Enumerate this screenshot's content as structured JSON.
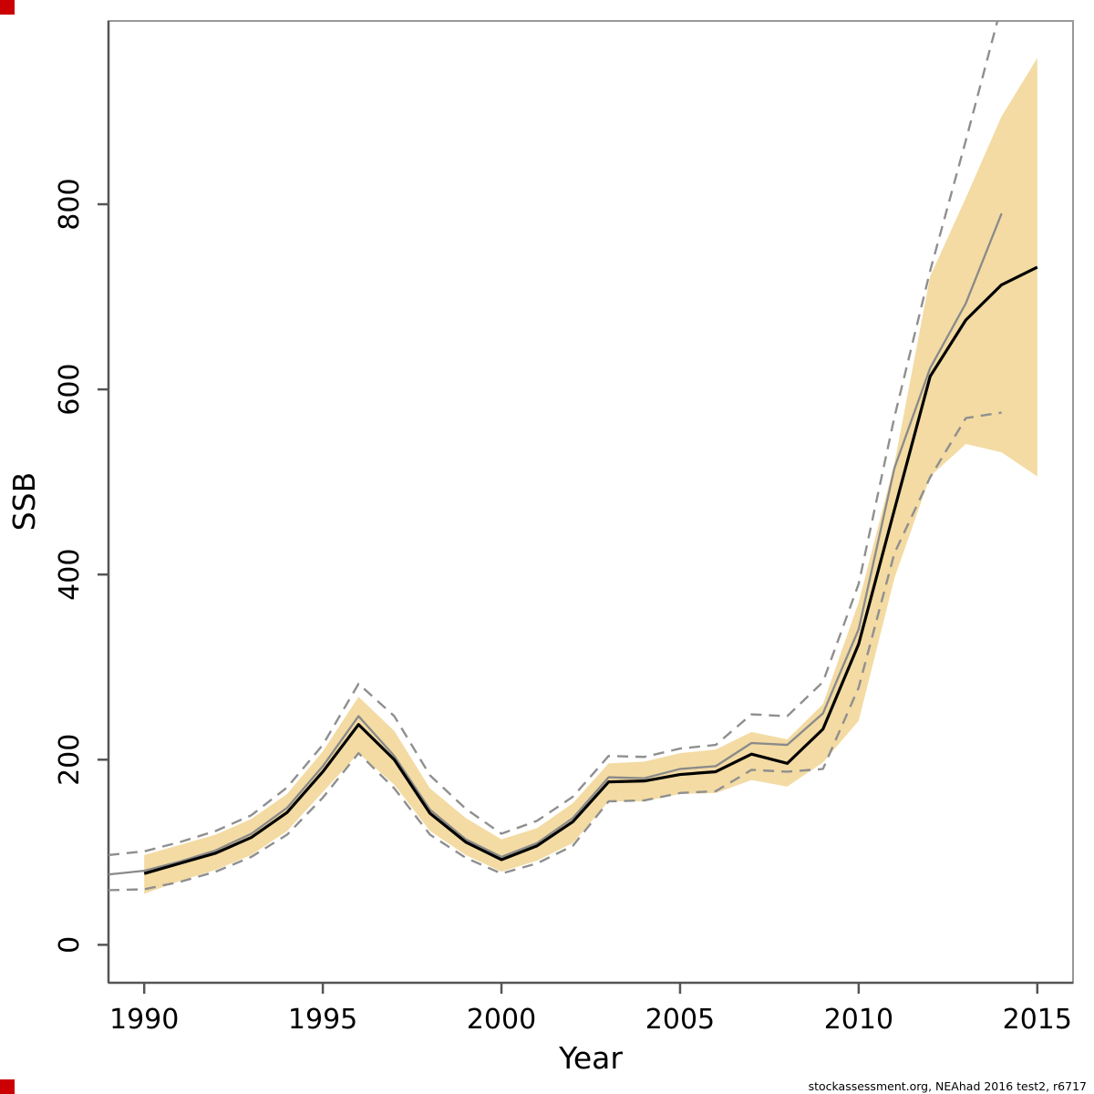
{
  "caption": "stockassessment.org, NEAhad 2016 test2, r6717",
  "axes": {
    "x_label": "Year",
    "y_label": "SSB",
    "x_ticks": [
      1990,
      1995,
      2000,
      2005,
      2010,
      2015
    ],
    "y_ticks": [
      0,
      200,
      400,
      600,
      800
    ]
  },
  "colors": {
    "band": "#f3dba3",
    "median_line": "#000000",
    "comparison_line": "#8a8a8a",
    "dashed_ci": "#8f8f8f",
    "axis_line": "#555555",
    "frame_line": "#999999",
    "corner_marker": "#cc0000",
    "text": "#000000"
  },
  "chart_data": {
    "type": "line",
    "title": "",
    "xlabel": "Year",
    "ylabel": "SSB",
    "xlim": [
      1989,
      2016
    ],
    "ylim": [
      -41,
      998
    ],
    "grid": false,
    "legend": "none",
    "description": "SSB estimate (black) with shaded confidence band (wheat), compared with a second assessment run (gray solid) and its dashed confidence bounds",
    "band": {
      "name": "current-run-confidence-band",
      "years": [
        1990,
        1991,
        1992,
        1993,
        1994,
        1995,
        1996,
        1997,
        1998,
        1999,
        2000,
        2001,
        2002,
        2003,
        2004,
        2005,
        2006,
        2007,
        2008,
        2009,
        2010,
        2011,
        2012,
        2013,
        2014,
        2015
      ],
      "low": [
        55,
        69,
        81,
        97,
        123,
        165,
        207,
        173,
        123,
        97,
        79,
        91,
        110,
        155,
        155,
        163,
        164,
        178,
        171,
        197,
        242,
        396,
        506,
        541,
        532,
        506
      ],
      "high": [
        97,
        108,
        119,
        136,
        163,
        209,
        268,
        231,
        169,
        137,
        114,
        126,
        153,
        196,
        198,
        207,
        211,
        230,
        222,
        260,
        370,
        520,
        722,
        807,
        895,
        958
      ]
    },
    "series": [
      {
        "name": "ssb-median",
        "style": "solid-black",
        "years": [
          1990,
          1991,
          1992,
          1993,
          1994,
          1995,
          1996,
          1997,
          1998,
          1999,
          2000,
          2001,
          2002,
          2003,
          2004,
          2005,
          2006,
          2007,
          2008,
          2009,
          2010,
          2011,
          2012,
          2013,
          2014,
          2015
        ],
        "values": [
          77,
          88,
          99,
          116,
          143,
          187,
          238,
          200,
          142,
          111,
          92,
          107,
          133,
          176,
          177,
          184,
          187,
          206,
          196,
          233,
          325,
          470,
          614,
          675,
          713,
          732
        ]
      },
      {
        "name": "comparison-run",
        "style": "solid-gray",
        "years": [
          1989,
          1990,
          1991,
          1992,
          1993,
          1994,
          1995,
          1996,
          1997,
          1998,
          1999,
          2000,
          2001,
          2002,
          2003,
          2004,
          2005,
          2006,
          2007,
          2008,
          2009,
          2010,
          2011,
          2012,
          2013,
          2014
        ],
        "values": [
          76,
          80,
          90,
          102,
          120,
          148,
          193,
          247,
          204,
          146,
          114,
          95,
          110,
          137,
          181,
          180,
          190,
          193,
          218,
          216,
          250,
          341,
          515,
          623,
          693,
          790
        ]
      },
      {
        "name": "comparison-ci-upper",
        "style": "dashed-gray",
        "years": [
          1989,
          1990,
          1991,
          1992,
          1993,
          1994,
          1995,
          1996,
          1997,
          1998,
          1999,
          2000,
          2001,
          2002,
          2003,
          2004,
          2005,
          2006,
          2007,
          2008,
          2009,
          2010,
          2011,
          2012,
          2013,
          2014
        ],
        "values": [
          97,
          101,
          111,
          123,
          140,
          170,
          216,
          282,
          247,
          183,
          147,
          120,
          134,
          160,
          204,
          203,
          212,
          216,
          249,
          247,
          284,
          390,
          570,
          728,
          869,
          1015
        ]
      },
      {
        "name": "comparison-ci-lower",
        "style": "dashed-gray",
        "years": [
          1989,
          1990,
          1991,
          1992,
          1993,
          1994,
          1995,
          1996,
          1997,
          1998,
          1999,
          2000,
          2001,
          2002,
          2003,
          2004,
          2005,
          2006,
          2007,
          2008,
          2009,
          2010,
          2011,
          2012,
          2013,
          2014
        ],
        "values": [
          59,
          60,
          68,
          79,
          95,
          119,
          159,
          207,
          169,
          119,
          94,
          77,
          88,
          107,
          155,
          156,
          164,
          166,
          189,
          187,
          190,
          278,
          423,
          505,
          569,
          575
        ]
      }
    ]
  }
}
